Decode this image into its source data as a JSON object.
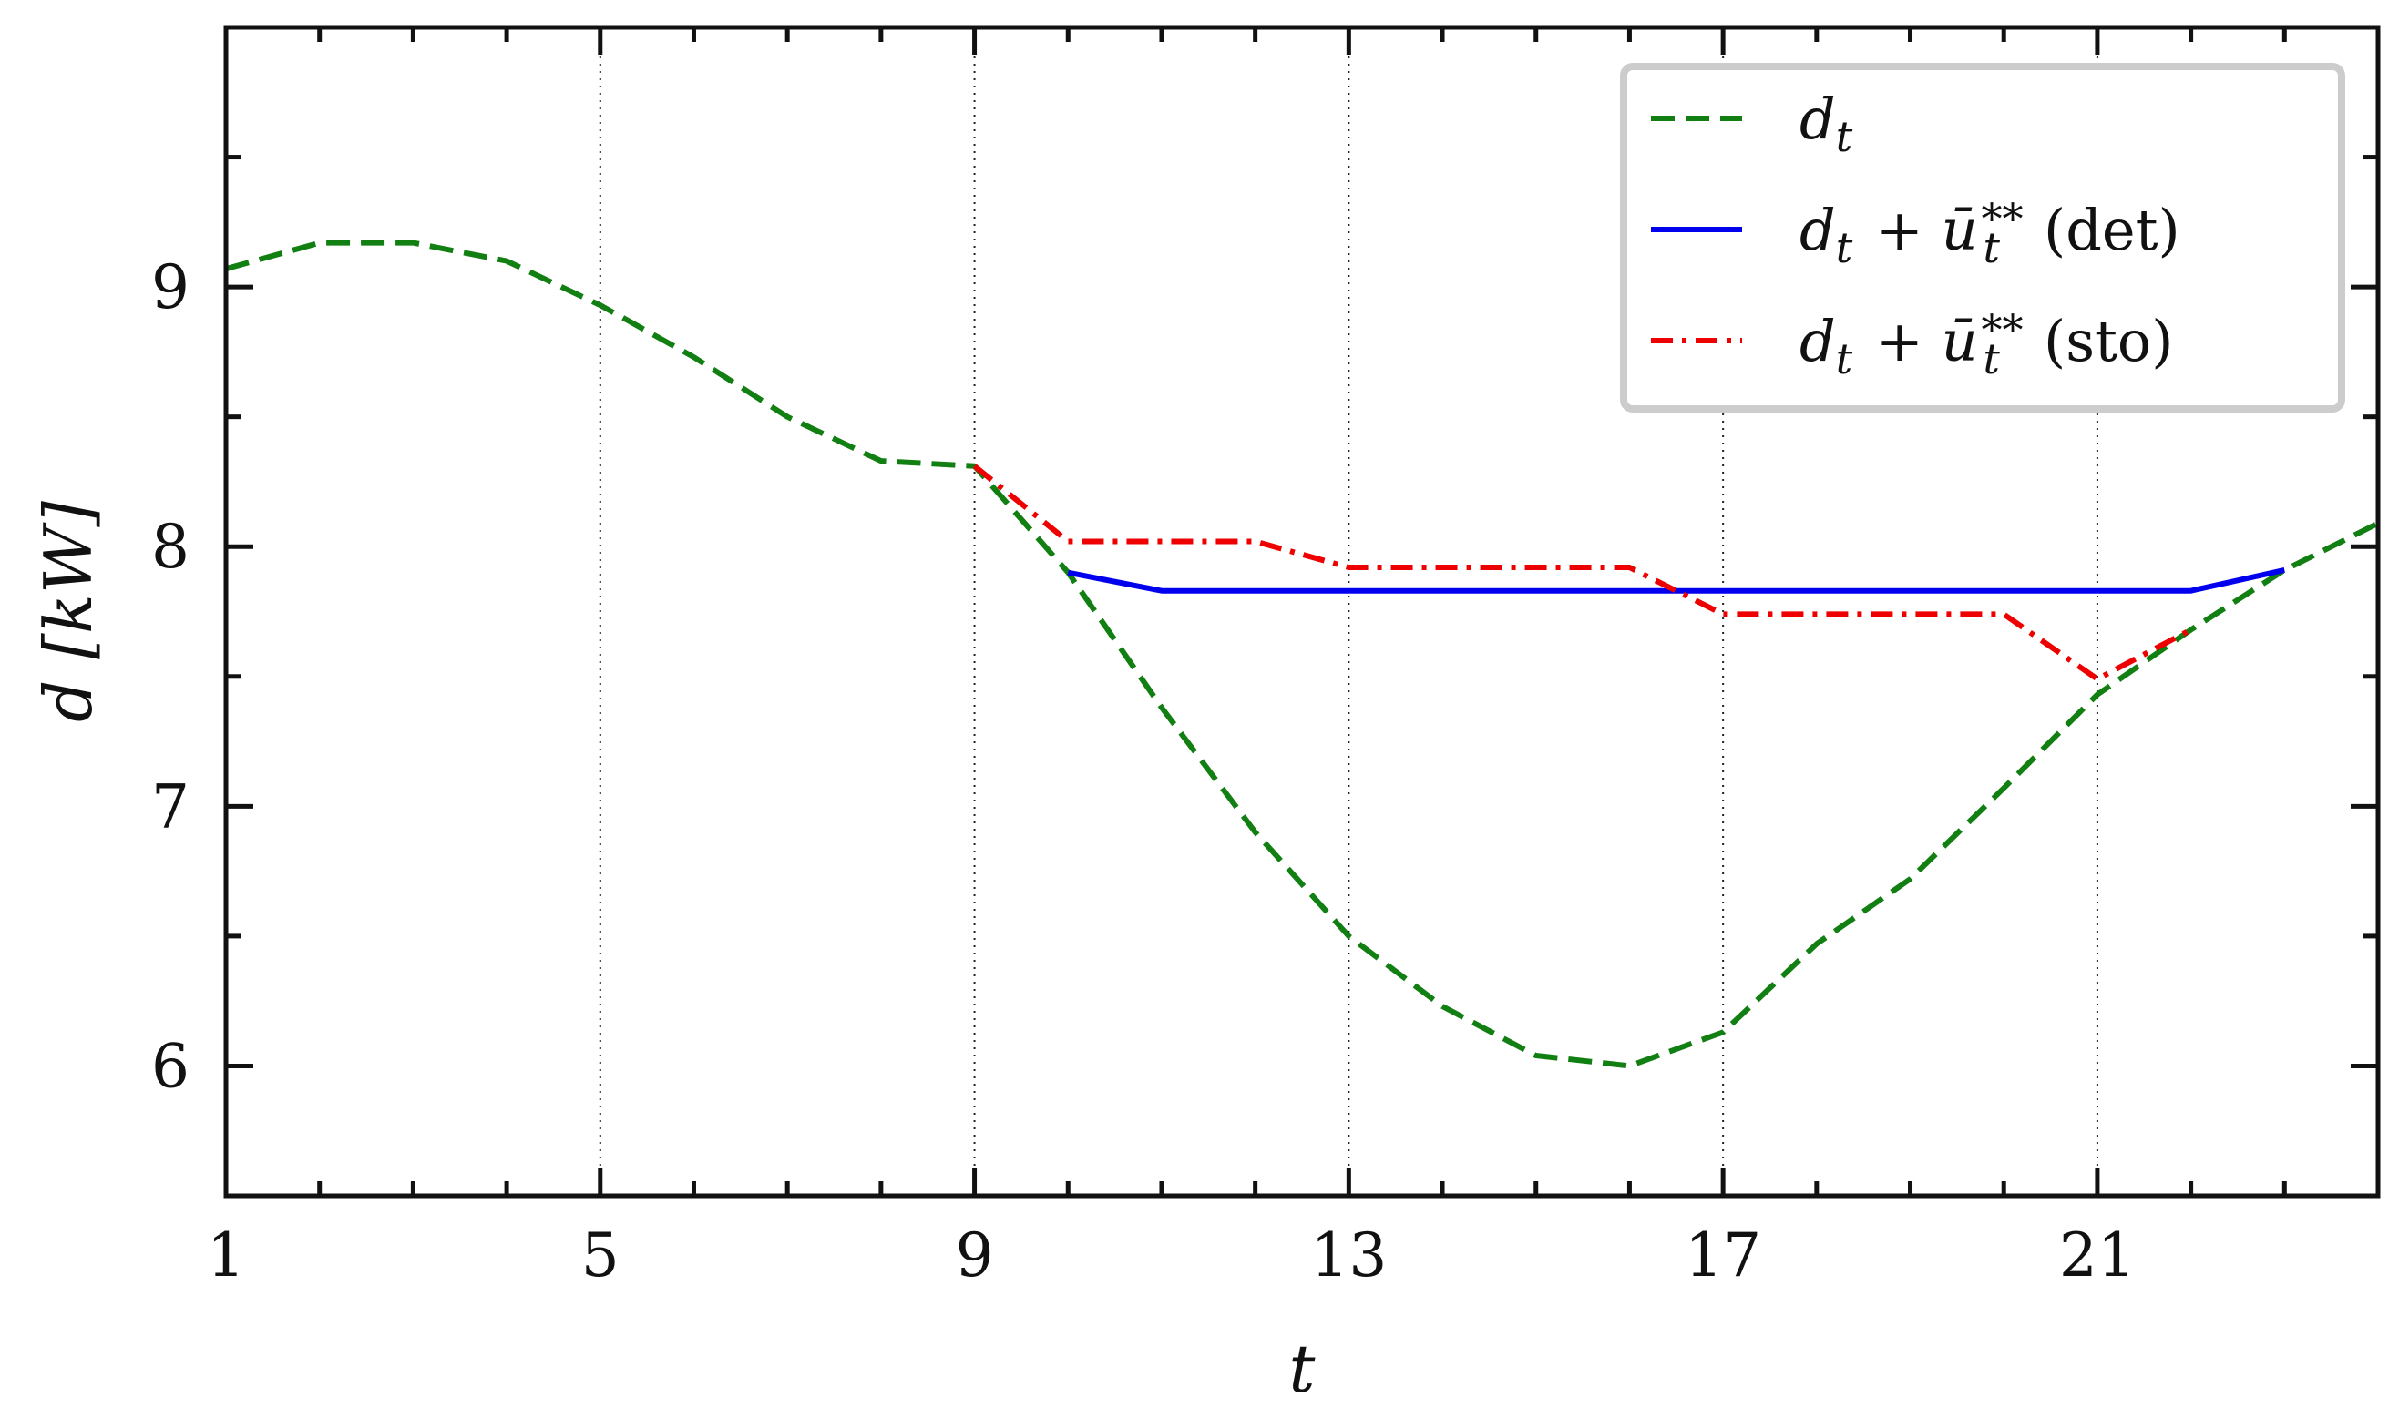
{
  "chart_data": {
    "type": "line",
    "title": "",
    "xlabel": "t",
    "ylabel": "d [kW]",
    "xlim": [
      1,
      24
    ],
    "ylim": [
      5.5,
      10
    ],
    "x_ticks": [
      1,
      5,
      9,
      13,
      17,
      21
    ],
    "y_ticks": [
      6,
      7,
      8,
      9
    ],
    "vertical_gridlines": [
      5,
      9,
      13,
      17,
      21
    ],
    "legend_position": "top-right",
    "series": [
      {
        "name": "d_t",
        "legend_label": {
          "main": "d",
          "sub": "t"
        },
        "color": "#117f11",
        "dash": "dashed",
        "x": [
          1,
          2,
          3,
          4,
          5,
          6,
          7,
          8,
          9,
          10,
          11,
          12,
          13,
          14,
          15,
          16,
          17,
          18,
          19,
          20,
          21,
          22,
          23,
          24
        ],
        "values": [
          9.07,
          9.17,
          9.17,
          9.1,
          8.93,
          8.73,
          8.5,
          8.33,
          8.31,
          7.9,
          7.38,
          6.9,
          6.5,
          6.23,
          6.04,
          6.0,
          6.13,
          6.47,
          6.72,
          7.07,
          7.43,
          7.68,
          7.91,
          8.09
        ]
      },
      {
        "name": "d_t + ū_t** (det)",
        "legend_label": {
          "main": "d",
          "sub": "t",
          "plus": " + ",
          "u": "ū",
          "usub": "t",
          "usup": "**",
          "tag": "(det)"
        },
        "color": "#0000ee",
        "dash": "solid",
        "x": [
          10,
          11,
          12,
          13,
          14,
          15,
          16,
          17,
          18,
          19,
          20,
          21,
          22,
          23
        ],
        "values": [
          7.9,
          7.83,
          7.83,
          7.83,
          7.83,
          7.83,
          7.83,
          7.83,
          7.83,
          7.83,
          7.83,
          7.83,
          7.83,
          7.91
        ]
      },
      {
        "name": "d_t + ū_t** (sto)",
        "legend_label": {
          "main": "d",
          "sub": "t",
          "plus": " + ",
          "u": "ū",
          "usub": "t",
          "usup": "**",
          "tag": "(sto)"
        },
        "color": "#ee0000",
        "dash": "dashdot",
        "x": [
          9,
          10,
          11,
          12,
          13,
          14,
          15,
          16,
          17,
          18,
          19,
          20,
          21,
          22
        ],
        "values": [
          8.31,
          8.02,
          8.02,
          8.02,
          7.92,
          7.92,
          7.92,
          7.92,
          7.74,
          7.74,
          7.74,
          7.74,
          7.49,
          7.68
        ]
      }
    ]
  }
}
